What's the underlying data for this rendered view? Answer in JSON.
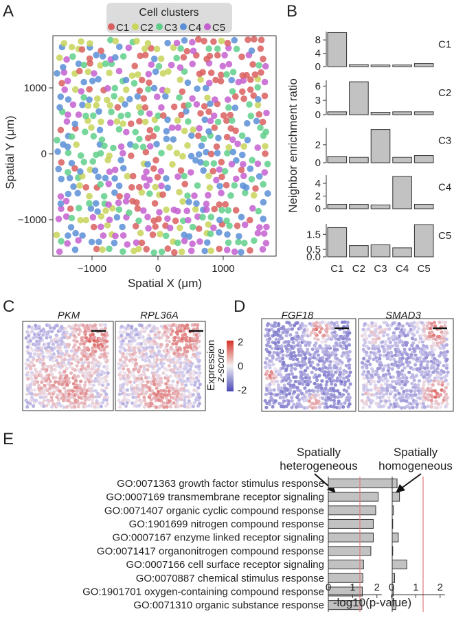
{
  "panels": {
    "A": "A",
    "B": "B",
    "C": "C",
    "D": "D",
    "E": "E"
  },
  "colors": {
    "C1": "#d95f5f",
    "C2": "#c8d45a",
    "C3": "#5fcf8a",
    "C4": "#5b8fd6",
    "C5": "#c45fd0"
  },
  "panelA": {
    "legend_title": "Cell clusters",
    "legend_items": [
      "C1",
      "C2",
      "C3",
      "C4",
      "C5"
    ],
    "xlabel": "Spatial X (μm)",
    "ylabel": "Spatial Y (μm)",
    "xticks": [
      -1000,
      0,
      1000
    ],
    "yticks": [
      1000,
      0,
      -1000
    ],
    "xticklabels": [
      "−1000",
      "0",
      "1000"
    ],
    "yticklabels": [
      "1000",
      "0",
      "−1000"
    ],
    "xlim": [
      -1600,
      1800
    ],
    "ylim": [
      -1550,
      1720
    ]
  },
  "chart_data": [
    {
      "type": "bar",
      "panel": "B",
      "title": "",
      "xlabel": "",
      "ylabel": "Neighbor enrichment ratio",
      "categories": [
        "C1",
        "C2",
        "C3",
        "C4",
        "C5"
      ],
      "series": [
        {
          "name": "C1",
          "values": [
            10.2,
            0.6,
            0.5,
            0.5,
            0.9
          ],
          "ylim": [
            0,
            10.5
          ],
          "yticks": [
            0,
            4,
            8
          ],
          "yticklabels": [
            "0",
            "4",
            "8"
          ]
        },
        {
          "name": "C2",
          "values": [
            0.6,
            6.9,
            0.5,
            0.6,
            0.6
          ],
          "ylim": [
            0,
            7.2
          ],
          "yticks": [
            0,
            3,
            6
          ],
          "yticklabels": [
            "0",
            "3",
            "6"
          ]
        },
        {
          "name": "C3",
          "values": [
            0.7,
            0.6,
            3.7,
            0.6,
            0.8
          ],
          "ylim": [
            0,
            3.9
          ],
          "yticks": [
            0,
            2
          ],
          "yticklabels": [
            "0",
            "2"
          ]
        },
        {
          "name": "C4",
          "values": [
            0.7,
            0.7,
            0.6,
            5.1,
            0.7
          ],
          "ylim": [
            0,
            5.3
          ],
          "yticks": [
            0,
            2,
            4
          ],
          "yticklabels": [
            "0",
            "2",
            "4"
          ]
        },
        {
          "name": "C5",
          "values": [
            1.95,
            0.75,
            0.8,
            0.6,
            2.15
          ],
          "ylim": [
            0,
            2.2
          ],
          "yticks": [
            0,
            0.5,
            1.5
          ],
          "yticklabels": [
            "0.0",
            "0.5",
            "1.5"
          ]
        }
      ]
    },
    {
      "type": "bar",
      "panel": "E",
      "orientation": "horizontal",
      "xlabel": "-log10(p-value)",
      "categories": [
        "GO:0071363 growth factor stimulus response",
        "GO:0007169 transmembrane receptor signaling",
        "GO:0071407 organic cyclic compound response",
        "GO:1901699 nitrogen compound response",
        "GO:0007167 enzyme linked receptor signaling",
        "GO:0071417 organonitrogen compound response",
        "GO:0007166 cell surface receptor signaling",
        "GO:0070887 chemical stimulus response",
        "GO:1901701 oxygen-containing compound response",
        "GO:0071310 organic substance response"
      ],
      "series": [
        {
          "name": "Spatially heterogeneous",
          "values": [
            2.7,
            2.05,
            1.95,
            1.85,
            1.85,
            1.75,
            1.45,
            1.42,
            1.4,
            1.38
          ]
        },
        {
          "name": "Spatially homogeneous",
          "values": [
            0.2,
            0.3,
            0.05,
            0.0,
            0.25,
            0.0,
            0.6,
            0.1,
            0.05,
            0.15
          ]
        }
      ],
      "xlim": [
        0,
        2.6
      ],
      "xticks": [
        0,
        1,
        2
      ],
      "threshold": 1.3
    }
  ],
  "panelC": {
    "genes": [
      "PKM",
      "RPL36A"
    ]
  },
  "panelD": {
    "genes": [
      "FGF18",
      "SMAD3"
    ]
  },
  "colorbar": {
    "title": "Expression",
    "subtitle": "z-score",
    "ticks": [
      "2",
      "0",
      "-2"
    ],
    "range": [
      -2,
      2
    ]
  },
  "panelE": {
    "left_annotation": [
      "Spatially",
      "heterogeneous"
    ],
    "right_annotation": [
      "Spatially",
      "homogeneous"
    ],
    "xticklabels": [
      "0",
      "1",
      "2"
    ]
  }
}
